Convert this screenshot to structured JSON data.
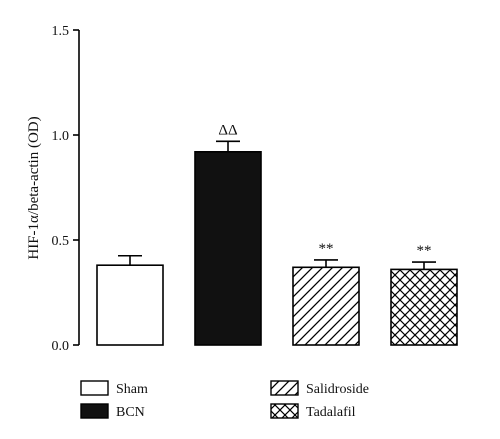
{
  "chart_data": {
    "type": "bar",
    "categories": [
      "Sham",
      "BCN",
      "Salidroside",
      "Tadalafil"
    ],
    "values": [
      0.38,
      0.92,
      0.37,
      0.36
    ],
    "errors": [
      0.045,
      0.05,
      0.035,
      0.035
    ],
    "annotations": [
      "",
      "ΔΔ",
      "**",
      "**"
    ],
    "patterns": [
      "none",
      "solid",
      "diagonal",
      "crosshatch"
    ],
    "ylabel": "HIF-1α/beta-actin (OD)",
    "xlabel": "",
    "title": "",
    "ylim": [
      0,
      1.5
    ],
    "yticks": [
      "0.0",
      "0.5",
      "1.0",
      "1.5"
    ],
    "legend": {
      "position": "bottom",
      "entries": [
        "Sham",
        "BCN",
        "Salidroside",
        "Tadalafil"
      ]
    },
    "grid": false,
    "colors": {
      "bar_fill": "#ffffff",
      "bar_solid": "#111111",
      "stroke": "#000000"
    }
  }
}
